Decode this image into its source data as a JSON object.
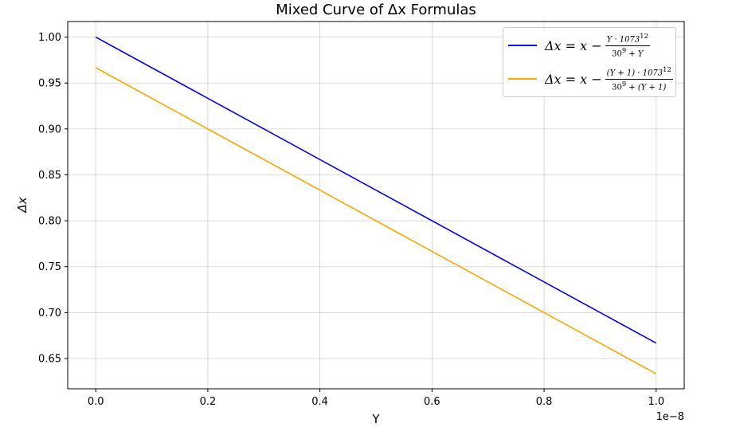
{
  "chart_data": {
    "type": "line",
    "title": "Mixed Curve of Δx Formulas",
    "xlabel": "Y",
    "ylabel": "Δx",
    "x_offset_text": "1e−8",
    "xlim": [
      -0.05,
      1.05
    ],
    "ylim": [
      0.617,
      1.017
    ],
    "x_ticks": [
      "0.0",
      "0.2",
      "0.4",
      "0.6",
      "0.8",
      "1.0"
    ],
    "y_ticks": [
      "0.65",
      "0.70",
      "0.75",
      "0.80",
      "0.85",
      "0.90",
      "0.95",
      "1.00"
    ],
    "grid": true,
    "legend_position": "top-right",
    "series": [
      {
        "name": "Δx = x − Y·1073^12 / (30^9 + Y)",
        "color": "#0000ff",
        "x": [
          0.0,
          1.0
        ],
        "y": [
          1.0,
          0.6667
        ]
      },
      {
        "name": "Δx = x − (Y+1)·1073^12 / (30^9 + (Y+1))",
        "color": "#ffa500",
        "x": [
          0.0,
          1.0
        ],
        "y": [
          0.9667,
          0.6333
        ]
      }
    ]
  },
  "legend": [
    {
      "lhs": "Δx = x −",
      "num": "Y · 1073",
      "num_exp": "12",
      "den": "30",
      "den_exp": "9",
      "den_tail": " + Y"
    },
    {
      "lhs": "Δx = x −",
      "num": "(Y + 1) · 1073",
      "num_exp": "12",
      "den": "30",
      "den_exp": "9",
      "den_tail": " + (Y + 1)"
    }
  ]
}
